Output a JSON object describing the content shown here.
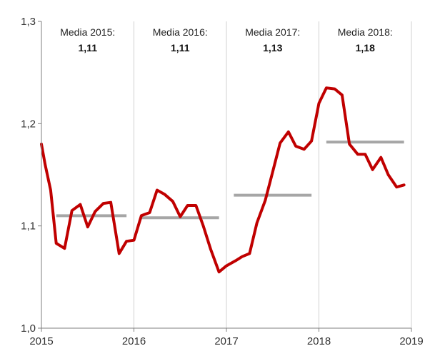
{
  "chart_data": {
    "type": "line",
    "title": "",
    "xlabel": "",
    "ylabel": "",
    "xlim": [
      2015,
      2019
    ],
    "ylim": [
      1.0,
      1.3
    ],
    "x_ticks": [
      "2015",
      "2016",
      "2017",
      "2018",
      "2019"
    ],
    "y_ticks": [
      "1,0",
      "1,1",
      "1,2",
      "1,3"
    ],
    "grid": "vertical separators at each year",
    "series": [
      {
        "color": "#c00000",
        "points": [
          [
            2015.0,
            1.18
          ],
          [
            2015.04,
            1.16
          ],
          [
            2015.1,
            1.135
          ],
          [
            2015.16,
            1.083
          ],
          [
            2015.25,
            1.078
          ],
          [
            2015.33,
            1.115
          ],
          [
            2015.42,
            1.121
          ],
          [
            2015.5,
            1.099
          ],
          [
            2015.58,
            1.114
          ],
          [
            2015.67,
            1.122
          ],
          [
            2015.75,
            1.123
          ],
          [
            2015.84,
            1.073
          ],
          [
            2015.92,
            1.085
          ],
          [
            2016.0,
            1.086
          ],
          [
            2016.08,
            1.11
          ],
          [
            2016.17,
            1.113
          ],
          [
            2016.25,
            1.135
          ],
          [
            2016.33,
            1.131
          ],
          [
            2016.42,
            1.124
          ],
          [
            2016.5,
            1.109
          ],
          [
            2016.58,
            1.12
          ],
          [
            2016.67,
            1.12
          ],
          [
            2016.75,
            1.1
          ],
          [
            2016.83,
            1.077
          ],
          [
            2016.92,
            1.055
          ],
          [
            2017.0,
            1.061
          ],
          [
            2017.1,
            1.066
          ],
          [
            2017.17,
            1.07
          ],
          [
            2017.25,
            1.073
          ],
          [
            2017.33,
            1.103
          ],
          [
            2017.42,
            1.125
          ],
          [
            2017.5,
            1.153
          ],
          [
            2017.58,
            1.181
          ],
          [
            2017.67,
            1.192
          ],
          [
            2017.75,
            1.178
          ],
          [
            2017.84,
            1.175
          ],
          [
            2017.92,
            1.183
          ],
          [
            2018.0,
            1.22
          ],
          [
            2018.08,
            1.235
          ],
          [
            2018.17,
            1.234
          ],
          [
            2018.25,
            1.228
          ],
          [
            2018.33,
            1.18
          ],
          [
            2018.42,
            1.17
          ],
          [
            2018.5,
            1.17
          ],
          [
            2018.58,
            1.155
          ],
          [
            2018.67,
            1.167
          ],
          [
            2018.75,
            1.15
          ],
          [
            2018.84,
            1.138
          ],
          [
            2018.92,
            1.14
          ]
        ]
      }
    ],
    "averages": [
      {
        "label": "Media 2015:",
        "value_text": "1,11",
        "value": 1.11,
        "x_start": 2015.16,
        "x_end": 2015.92,
        "label_center_x": 2015.5
      },
      {
        "label": "Media 2016:",
        "value_text": "1,11",
        "value": 1.108,
        "x_start": 2016.08,
        "x_end": 2016.92,
        "label_center_x": 2016.5
      },
      {
        "label": "Media 2017:",
        "value_text": "1,13",
        "value": 1.13,
        "x_start": 2017.08,
        "x_end": 2017.92,
        "label_center_x": 2017.5
      },
      {
        "label": "Media 2018:",
        "value_text": "1,18",
        "value": 1.182,
        "x_start": 2018.08,
        "x_end": 2018.92,
        "label_center_x": 2018.5
      }
    ],
    "average_color": "#a6a6a6",
    "separator_color": "#d0d0d0",
    "axis_color": "#7f7f7f"
  }
}
